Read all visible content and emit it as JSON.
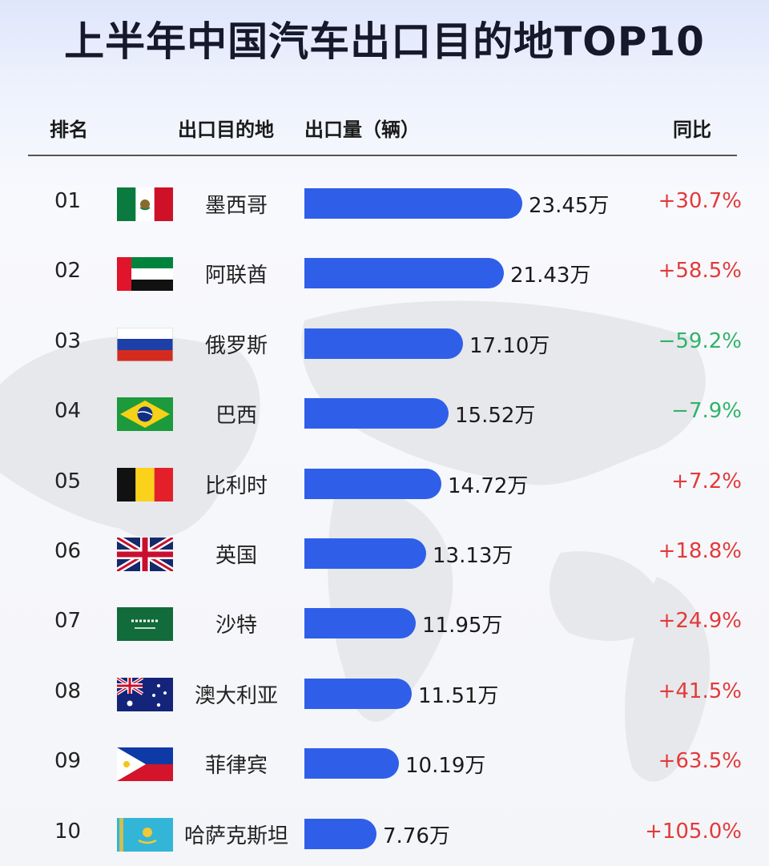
{
  "title": "上半年中国汽车出口目的地TOP10",
  "headers": {
    "rank": "排名",
    "destination": "出口目的地",
    "volume": "出口量（辆）",
    "yoy": "同比"
  },
  "colors": {
    "bar": "#2f5fe9",
    "positive": "#e23a3a",
    "negative": "#2fb468"
  },
  "chart_data": {
    "type": "bar",
    "orientation": "horizontal",
    "title": "上半年中国汽车出口目的地TOP10",
    "unit": "万",
    "rows": [
      {
        "rank": "01",
        "country": "墨西哥",
        "flag": "mexico-flag-icon",
        "value": 23.45,
        "value_label": "23.45万",
        "yoy": "+30.7%",
        "yoy_dir": "pos"
      },
      {
        "rank": "02",
        "country": "阿联酋",
        "flag": "uae-flag-icon",
        "value": 21.43,
        "value_label": "21.43万",
        "yoy": "+58.5%",
        "yoy_dir": "pos"
      },
      {
        "rank": "03",
        "country": "俄罗斯",
        "flag": "russia-flag-icon",
        "value": 17.1,
        "value_label": "17.10万",
        "yoy": "−59.2%",
        "yoy_dir": "neg"
      },
      {
        "rank": "04",
        "country": "巴西",
        "flag": "brazil-flag-icon",
        "value": 15.52,
        "value_label": "15.52万",
        "yoy": "−7.9%",
        "yoy_dir": "neg"
      },
      {
        "rank": "05",
        "country": "比利时",
        "flag": "belgium-flag-icon",
        "value": 14.72,
        "value_label": "14.72万",
        "yoy": "+7.2%",
        "yoy_dir": "pos"
      },
      {
        "rank": "06",
        "country": "英国",
        "flag": "uk-flag-icon",
        "value": 13.13,
        "value_label": "13.13万",
        "yoy": "+18.8%",
        "yoy_dir": "pos"
      },
      {
        "rank": "07",
        "country": "沙特",
        "flag": "saudi-flag-icon",
        "value": 11.95,
        "value_label": "11.95万",
        "yoy": "+24.9%",
        "yoy_dir": "pos"
      },
      {
        "rank": "08",
        "country": "澳大利亚",
        "flag": "australia-flag-icon",
        "value": 11.51,
        "value_label": "11.51万",
        "yoy": "+41.5%",
        "yoy_dir": "pos"
      },
      {
        "rank": "09",
        "country": "菲律宾",
        "flag": "philippines-flag-icon",
        "value": 10.19,
        "value_label": "10.19万",
        "yoy": "+63.5%",
        "yoy_dir": "pos"
      },
      {
        "rank": "10",
        "country": "哈萨克斯坦",
        "flag": "kazakhstan-flag-icon",
        "value": 7.76,
        "value_label": "7.76万",
        "yoy": "+105.0%",
        "yoy_dir": "pos"
      }
    ]
  }
}
